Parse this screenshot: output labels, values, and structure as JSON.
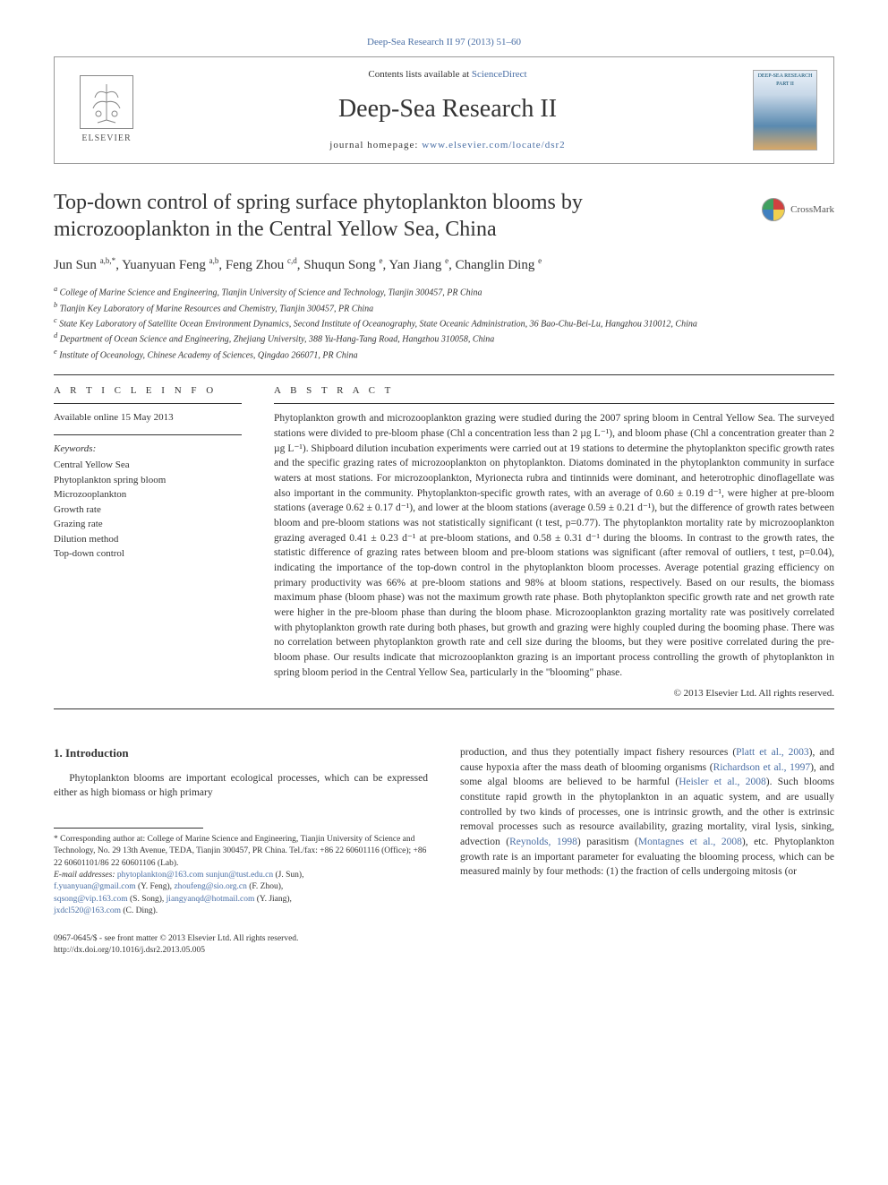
{
  "top_ref": "Deep-Sea Research II 97 (2013) 51–60",
  "header": {
    "contents_prefix": "Contents lists available at ",
    "contents_link": "ScienceDirect",
    "journal": "Deep-Sea Research II",
    "homepage_prefix": "journal homepage: ",
    "homepage_link": "www.elsevier.com/locate/dsr2",
    "publisher": "ELSEVIER",
    "cover_label": "DEEP-SEA RESEARCH PART II"
  },
  "title": "Top-down control of spring surface phytoplankton blooms by microzooplankton in the Central Yellow Sea, China",
  "crossmark_label": "CrossMark",
  "authors_html": "Jun Sun <sup>a,b,*</sup>, Yuanyuan Feng <sup>a,b</sup>, Feng Zhou <sup>c,d</sup>, Shuqun Song <sup>e</sup>, Yan Jiang <sup>e</sup>, Changlin Ding <sup>e</sup>",
  "affiliations": [
    "a College of Marine Science and Engineering, Tianjin University of Science and Technology, Tianjin 300457, PR China",
    "b Tianjin Key Laboratory of Marine Resources and Chemistry, Tianjin 300457, PR China",
    "c State Key Laboratory of Satellite Ocean Environment Dynamics, Second Institute of Oceanography, State Oceanic Administration, 36 Bao-Chu-Bei-Lu, Hangzhou 310012, China",
    "d Department of Ocean Science and Engineering, Zhejiang University, 388 Yu-Hang-Tang Road, Hangzhou 310058, China",
    "e Institute of Oceanology, Chinese Academy of Sciences, Qingdao 266071, PR China"
  ],
  "info": {
    "head": "A R T I C L E  I N F O",
    "available": "Available online 15 May 2013",
    "kw_head": "Keywords:",
    "keywords": [
      "Central Yellow Sea",
      "Phytoplankton spring bloom",
      "Microzooplankton",
      "Growth rate",
      "Grazing rate",
      "Dilution method",
      "Top-down control"
    ]
  },
  "abstract": {
    "head": "A B S T R A C T",
    "text": "Phytoplankton growth and microzooplankton grazing were studied during the 2007 spring bloom in Central Yellow Sea. The surveyed stations were divided to pre-bloom phase (Chl a concentration less than 2 µg L⁻¹), and bloom phase (Chl a concentration greater than 2 µg L⁻¹). Shipboard dilution incubation experiments were carried out at 19 stations to determine the phytoplankton specific growth rates and the specific grazing rates of microzooplankton on phytoplankton. Diatoms dominated in the phytoplankton community in surface waters at most stations. For microzooplankton, Myrionecta rubra and tintinnids were dominant, and heterotrophic dinoflagellate was also important in the community. Phytoplankton-specific growth rates, with an average of 0.60 ± 0.19 d⁻¹, were higher at pre-bloom stations (average 0.62 ± 0.17 d⁻¹), and lower at the bloom stations (average 0.59 ± 0.21 d⁻¹), but the difference of growth rates between bloom and pre-bloom stations was not statistically significant (t test, p=0.77). The phytoplankton mortality rate by microzooplankton grazing averaged 0.41 ± 0.23 d⁻¹ at pre-bloom stations, and 0.58 ± 0.31 d⁻¹ during the blooms. In contrast to the growth rates, the statistic difference of grazing rates between bloom and pre-bloom stations was significant (after removal of outliers, t test, p=0.04), indicating the importance of the top-down control in the phytoplankton bloom processes. Average potential grazing efficiency on primary productivity was 66% at pre-bloom stations and 98% at bloom stations, respectively. Based on our results, the biomass maximum phase (bloom phase) was not the maximum growth rate phase. Both phytoplankton specific growth rate and net growth rate were higher in the pre-bloom phase than during the bloom phase. Microzooplankton grazing mortality rate was positively correlated with phytoplankton growth rate during both phases, but growth and grazing were highly coupled during the booming phase. There was no correlation between phytoplankton growth rate and cell size during the blooms, but they were positive correlated during the pre-bloom phase. Our results indicate that microzooplankton grazing is an important process controlling the growth of phytoplankton in spring bloom period in the Central Yellow Sea, particularly in the \"blooming\" phase.",
    "copyright": "© 2013 Elsevier Ltd. All rights reserved."
  },
  "section1": {
    "head": "1.  Introduction",
    "para_left": "Phytoplankton blooms are important ecological processes, which can be expressed either as high biomass or high primary",
    "para_right_pre": "production, and thus they potentially impact fishery resources (",
    "ref1": "Platt et al., 2003",
    "para_right_2": "), and cause hypoxia after the mass death of blooming organisms (",
    "ref2": "Richardson et al., 1997",
    "para_right_3": "), and some algal blooms are believed to be harmful (",
    "ref3": "Heisler et al., 2008",
    "para_right_4": "). Such blooms constitute rapid growth in the phytoplankton in an aquatic system, and are usually controlled by two kinds of processes, one is intrinsic growth, and the other is extrinsic removal processes such as resource availability, grazing mortality, viral lysis, sinking, advection (",
    "ref4": "Reynolds, 1998",
    "para_right_5": ") parasitism (",
    "ref5": "Montagnes et al., 2008",
    "para_right_6": "), etc. Phytoplankton growth rate is an important parameter for evaluating the blooming process, which can be measured mainly by four methods: (1) the fraction of cells undergoing mitosis (or"
  },
  "footnotes": {
    "corr": "* Corresponding author at: College of Marine Science and Engineering, Tianjin University of Science and Technology, No. 29 13th Avenue, TEDA, Tianjin 300457, PR China. Tel./fax: +86 22 60601116 (Office); +86 22 60601101/86 22 60601106 (Lab).",
    "email_label": "E-mail addresses: ",
    "emails": [
      {
        "addr": "phytoplankton@163.com",
        "who": ""
      },
      {
        "addr": "sunjun@tust.edu.cn",
        "who": " (J. Sun),"
      },
      {
        "addr": "f.yuanyuan@gmail.com",
        "who": " (Y. Feng),"
      },
      {
        "addr": "zhoufeng@sio.org.cn",
        "who": " (F. Zhou),"
      },
      {
        "addr": "sqsong@vip.163.com",
        "who": " (S. Song),"
      },
      {
        "addr": "jiangyanqd@hotmail.com",
        "who": " (Y. Jiang),"
      },
      {
        "addr": "jxdcl520@163.com",
        "who": " (C. Ding)."
      }
    ]
  },
  "bottom": {
    "issn": "0967-0645/$ - see front matter © 2013 Elsevier Ltd. All rights reserved.",
    "doi": "http://dx.doi.org/10.1016/j.dsr2.2013.05.005"
  },
  "colors": {
    "link": "#4a6fa5",
    "rule": "#333333",
    "text": "#333333"
  }
}
